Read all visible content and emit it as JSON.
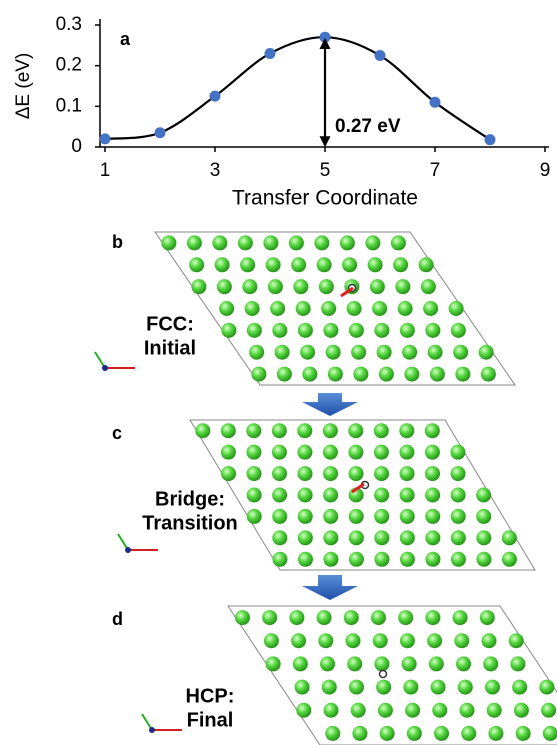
{
  "chart_data": {
    "type": "line",
    "panel_label": "a",
    "x_label": "Transfer Coordinate",
    "y_label": "ΔE (eV)",
    "x": [
      1,
      2,
      3,
      4,
      5,
      6,
      7,
      8
    ],
    "series": [
      {
        "color": "#4472c4",
        "values": [
          0.02,
          0.035,
          0.125,
          0.23,
          0.27,
          0.225,
          0.11,
          0.018
        ]
      }
    ],
    "xlim": [
      1,
      9
    ],
    "xticks": [
      1,
      3,
      5,
      7,
      9
    ],
    "ylim": [
      0,
      0.3
    ],
    "yticks": [
      0,
      0.1,
      0.2,
      0.3
    ],
    "annotation": {
      "text": "0.27 eV",
      "x": 5,
      "value": 0.27
    }
  },
  "panels": [
    {
      "label": "b",
      "caption": [
        "FCC:",
        "Initial"
      ]
    },
    {
      "label": "c",
      "caption": [
        "Bridge:",
        "Transition"
      ]
    },
    {
      "label": "d",
      "caption": [
        "HCP:",
        "Final"
      ]
    }
  ]
}
